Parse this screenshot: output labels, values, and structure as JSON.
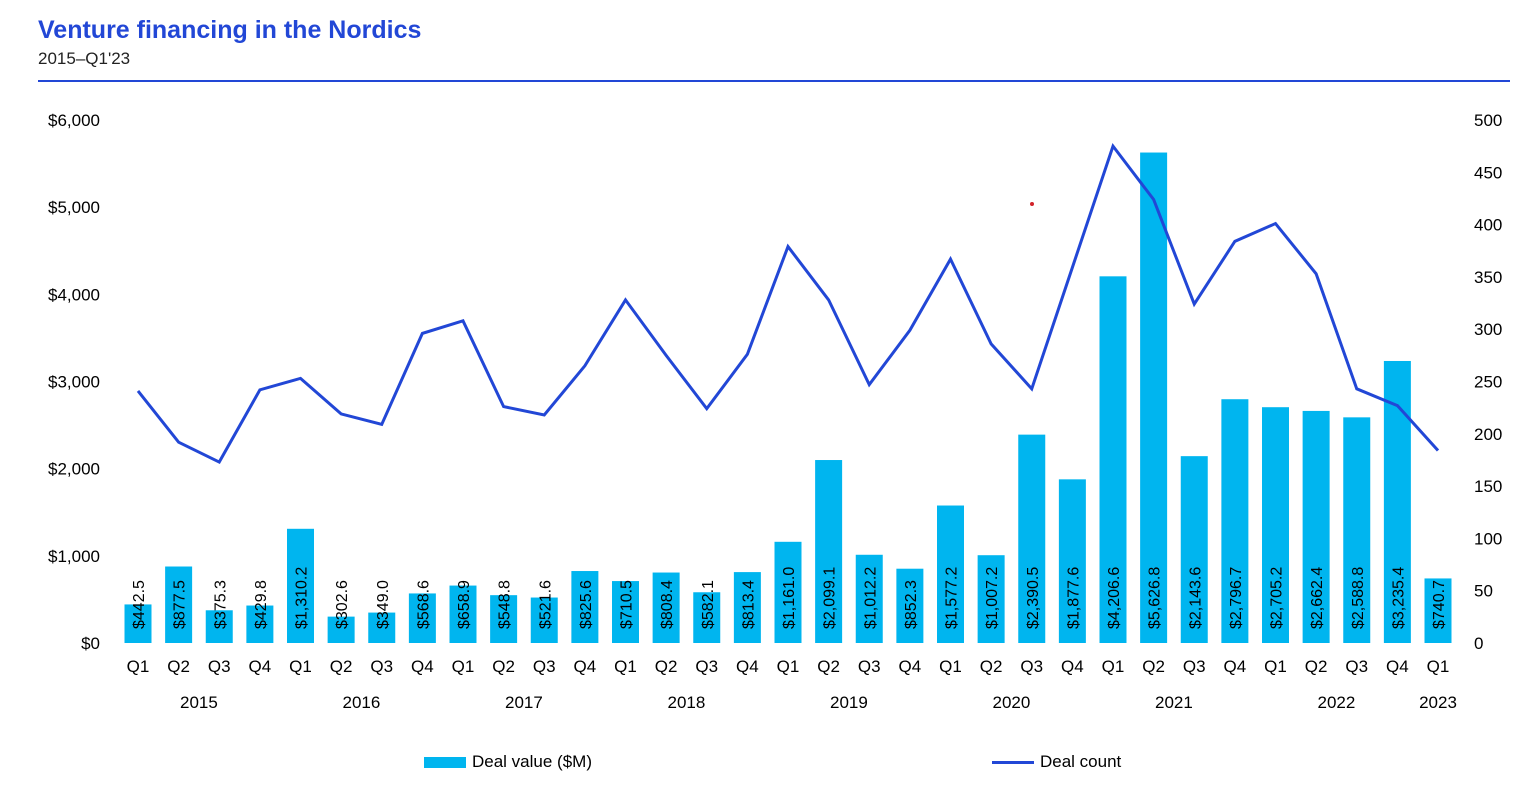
{
  "header": {
    "title": "Venture financing in the Nordics",
    "subtitle": "2015–Q1'23"
  },
  "colors": {
    "accent": "#2247d6",
    "bar": "#00b5ef",
    "line": "#2247d6",
    "artifact": "#d2232a"
  },
  "legend": {
    "bar_label": "Deal value ($M)",
    "line_label": "Deal count"
  },
  "chart_data": {
    "type": "bar+line",
    "title": "Venture financing in the Nordics",
    "subtitle": "2015–Q1'23",
    "xlabel": "",
    "ylabel": "",
    "grid": false,
    "legend_position": "bottom",
    "categories": [
      "Q1",
      "Q2",
      "Q3",
      "Q4",
      "Q1",
      "Q2",
      "Q3",
      "Q4",
      "Q1",
      "Q2",
      "Q3",
      "Q4",
      "Q1",
      "Q2",
      "Q3",
      "Q4",
      "Q1",
      "Q2",
      "Q3",
      "Q4",
      "Q1",
      "Q2",
      "Q3",
      "Q4",
      "Q1",
      "Q2",
      "Q3",
      "Q4",
      "Q1",
      "Q2",
      "Q3",
      "Q4",
      "Q1"
    ],
    "years": [
      {
        "label": "2015",
        "from": 0,
        "to": 3
      },
      {
        "label": "2016",
        "from": 4,
        "to": 7
      },
      {
        "label": "2017",
        "from": 8,
        "to": 11
      },
      {
        "label": "2018",
        "from": 12,
        "to": 15
      },
      {
        "label": "2019",
        "from": 16,
        "to": 19
      },
      {
        "label": "2020",
        "from": 20,
        "to": 23
      },
      {
        "label": "2021",
        "from": 24,
        "to": 27
      },
      {
        "label": "2022",
        "from": 28,
        "to": 31
      },
      {
        "label": "2023",
        "from": 32,
        "to": 32
      }
    ],
    "left_axis": {
      "range": [
        0,
        6000
      ],
      "ticks": [
        0,
        1000,
        2000,
        3000,
        4000,
        5000,
        6000
      ],
      "tick_labels": [
        "$0",
        "$1,000",
        "$2,000",
        "$3,000",
        "$4,000",
        "$5,000",
        "$6,000"
      ]
    },
    "right_axis": {
      "range": [
        0,
        500
      ],
      "ticks": [
        0,
        50,
        100,
        150,
        200,
        250,
        300,
        350,
        400,
        450,
        500
      ],
      "tick_labels": [
        "0",
        "50",
        "100",
        "150",
        "200",
        "250",
        "300",
        "350",
        "400",
        "450",
        "500"
      ]
    },
    "series": [
      {
        "name": "Deal value ($M)",
        "type": "bar",
        "axis": "left",
        "values": [
          442.5,
          877.5,
          375.3,
          429.8,
          1310.2,
          302.6,
          349.0,
          568.6,
          658.9,
          548.8,
          521.6,
          825.6,
          710.5,
          808.4,
          582.1,
          813.4,
          1161.0,
          2099.1,
          1012.2,
          852.3,
          1577.2,
          1007.2,
          2390.5,
          1877.6,
          4206.6,
          5626.8,
          2143.6,
          2796.7,
          2705.2,
          2662.4,
          2588.8,
          3235.4,
          740.7
        ],
        "data_labels": [
          "$442.5",
          "$877.5",
          "$375.3",
          "$429.8",
          "$1,310.2",
          "$302.6",
          "$349.0",
          "$568.6",
          "$658.9",
          "$548.8",
          "$521.6",
          "$825.6",
          "$710.5",
          "$808.4",
          "$582.1",
          "$813.4",
          "$1,161.0",
          "$2,099.1",
          "$1,012.2",
          "$852.3",
          "$1,577.2",
          "$1,007.2",
          "$2,390.5",
          "$1,877.6",
          "$4,206.6",
          "$5,626.8",
          "$2,143.6",
          "$2,796.7",
          "$2,705.2",
          "$2,662.4",
          "$2,588.8",
          "$3,235.4",
          "$740.7"
        ]
      },
      {
        "name": "Deal count",
        "type": "line",
        "axis": "right",
        "values": [
          241,
          192,
          173,
          242,
          253,
          219,
          209,
          296,
          308,
          226,
          218,
          265,
          328,
          275,
          224,
          276,
          379,
          328,
          247,
          299,
          367,
          286,
          243,
          359,
          475,
          424,
          324,
          384,
          401,
          353,
          243,
          227,
          184
        ]
      }
    ]
  }
}
